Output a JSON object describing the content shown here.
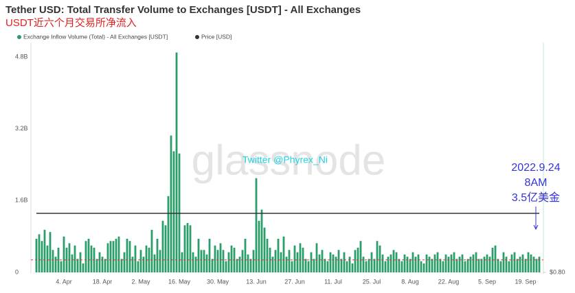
{
  "chart_data": {
    "type": "bar",
    "title": "Tether USD: Total Transfer Volume to Exchanges [USDT] - All Exchanges",
    "subtitle": "USDT近六个月交易所净流入",
    "categories": [
      null,
      null,
      null,
      null,
      null,
      null,
      null,
      null,
      null,
      null,
      "4. Apr",
      null,
      null,
      null,
      null,
      null,
      null,
      null,
      null,
      null,
      null,
      null,
      null,
      null,
      "18. Apr",
      null,
      null,
      null,
      null,
      null,
      null,
      null,
      null,
      null,
      null,
      null,
      null,
      null,
      "2. May",
      null,
      null,
      null,
      null,
      null,
      null,
      null,
      null,
      null,
      null,
      null,
      null,
      null,
      "16. May",
      null,
      null,
      null,
      null,
      null,
      null,
      null,
      null,
      null,
      null,
      null,
      null,
      null,
      "30. May",
      null,
      null,
      null,
      null,
      null,
      null,
      null,
      null,
      null,
      null,
      null,
      null,
      null,
      "13. Jun",
      null,
      null,
      null,
      null,
      null,
      null,
      null,
      null,
      null,
      null,
      null,
      null,
      null,
      "27. Jun",
      null,
      null,
      null,
      null,
      null,
      null,
      null,
      null,
      null,
      null,
      null,
      null,
      null,
      "11. Jul",
      null,
      null,
      null,
      null,
      null,
      null,
      null,
      null,
      null,
      null,
      null,
      null,
      null,
      "25. Jul",
      null,
      null,
      null,
      null,
      null,
      null,
      null,
      null,
      null,
      null,
      null,
      null,
      null,
      "8. Aug",
      null,
      null,
      null,
      null,
      null,
      null,
      null,
      null,
      null,
      null,
      null,
      null,
      null,
      "22. Aug",
      null,
      null,
      null,
      null,
      null,
      null,
      null,
      null,
      null,
      null,
      null,
      null,
      null,
      "5. Sep",
      null,
      null,
      null,
      null,
      null,
      null,
      null,
      null,
      null,
      null,
      null,
      null,
      null,
      "19. Sep",
      null,
      null,
      null,
      null,
      null
    ],
    "series": [
      {
        "name": "Exchange Inflow Volume (Total) - All Exchanges [USDT]",
        "color": "#2a9d6a",
        "values": [
          0.75,
          0.85,
          0.7,
          0.95,
          0.6,
          0.9,
          0.5,
          0.35,
          0.55,
          0.25,
          0.8,
          0.55,
          0.65,
          0.4,
          0.6,
          0.3,
          0.45,
          0.2,
          0.7,
          0.75,
          0.6,
          0.55,
          0.3,
          0.45,
          0.35,
          0.3,
          0.65,
          0.7,
          0.7,
          0.75,
          0.8,
          0.3,
          0.45,
          0.75,
          0.7,
          0.35,
          0.6,
          0.25,
          0.5,
          0.35,
          0.6,
          0.55,
          0.95,
          0.4,
          0.75,
          0.5,
          1.15,
          1.05,
          1.7,
          3.05,
          2.7,
          4.9,
          2.65,
          0.45,
          1.05,
          1.1,
          1.05,
          0.45,
          0.35,
          0.75,
          0.5,
          0.5,
          0.4,
          0.75,
          0.3,
          0.6,
          0.5,
          0.65,
          0.5,
          0.25,
          0.45,
          0.6,
          0.55,
          0.3,
          0.35,
          0.5,
          0.75,
          0.4,
          0.3,
          0.5,
          2.1,
          1.15,
          1.4,
          1.0,
          0.75,
          0.55,
          0.35,
          0.5,
          0.75,
          0.45,
          0.8,
          0.35,
          0.5,
          0.25,
          0.6,
          0.45,
          0.65,
          0.55,
          0.3,
          0.25,
          0.45,
          0.3,
          0.65,
          0.4,
          0.5,
          0.3,
          0.25,
          0.45,
          0.4,
          0.35,
          0.5,
          0.3,
          0.45,
          0.25,
          0.35,
          0.2,
          0.5,
          0.55,
          0.7,
          0.35,
          0.25,
          0.3,
          0.45,
          0.3,
          0.7,
          0.6,
          0.4,
          0.25,
          0.35,
          0.4,
          0.5,
          0.45,
          0.3,
          0.25,
          0.4,
          0.35,
          0.3,
          0.45,
          0.35,
          0.4,
          0.25,
          0.2,
          0.4,
          0.35,
          0.3,
          0.4,
          0.45,
          0.3,
          0.25,
          0.4,
          0.35,
          0.4,
          0.45,
          0.3,
          0.35,
          0.4,
          0.25,
          0.3,
          0.35,
          0.4,
          0.45,
          0.3,
          0.3,
          0.35,
          0.4,
          0.35,
          0.55,
          0.6,
          0.3,
          0.25,
          0.45,
          0.35,
          0.25,
          0.4,
          0.45,
          0.3,
          0.35,
          0.4,
          0.3,
          0.45,
          0.4,
          0.35,
          0.3,
          0.35
        ]
      },
      {
        "name": "Price [USD]",
        "color": "#333333",
        "type": "line",
        "axis": "y2",
        "values": [
          1,
          1,
          1,
          1,
          1,
          1,
          1,
          1,
          1,
          1,
          1,
          1,
          1,
          1,
          1,
          1,
          1,
          1,
          1,
          1,
          1,
          1,
          1,
          1,
          1,
          1,
          1,
          1,
          1,
          1,
          1,
          1,
          1,
          1,
          1,
          1,
          1,
          1,
          1,
          1,
          1,
          1,
          1,
          1,
          1,
          1,
          1,
          1,
          1,
          1,
          1,
          1,
          1,
          1,
          1,
          1,
          1,
          1,
          1,
          1,
          1,
          1,
          1,
          1,
          1,
          1,
          1,
          1,
          1,
          1,
          1,
          1,
          1,
          1,
          1,
          1,
          1,
          1,
          1,
          1,
          1,
          1,
          1,
          1,
          1,
          1,
          1,
          1,
          1,
          1,
          1,
          1,
          1,
          1,
          1,
          1,
          1,
          1,
          1,
          1,
          1,
          1,
          1,
          1,
          1,
          1,
          1,
          1,
          1,
          1,
          1,
          1,
          1,
          1,
          1,
          1,
          1,
          1,
          1,
          1,
          1,
          1,
          1,
          1,
          1,
          1,
          1,
          1,
          1,
          1,
          1,
          1,
          1,
          1,
          1,
          1,
          1,
          1,
          1,
          1,
          1,
          1,
          1,
          1,
          1,
          1,
          1,
          1,
          1,
          1,
          1,
          1,
          1,
          1,
          1,
          1,
          1,
          1,
          1,
          1,
          1,
          1,
          1,
          1,
          1,
          1,
          1,
          1,
          1,
          1,
          1,
          1,
          1,
          1,
          1,
          1,
          1,
          1,
          1,
          1,
          1,
          1,
          1,
          1
        ]
      }
    ],
    "ylim": [
      0,
      5.0
    ],
    "yticks": [
      0,
      {
        "value": 1.6,
        "label": "1.6B"
      },
      {
        "value": 3.2,
        "label": "3.2B"
      },
      {
        "value": 4.8,
        "label": "4.8B"
      }
    ],
    "y2lim": [
      0.8,
      1.56
    ],
    "y2ticks": [
      {
        "value": 0.8,
        "label": "$0.80"
      }
    ],
    "reference_line": {
      "value": 0.28,
      "color": "#e03030"
    },
    "annotations": [
      "2022.9.24",
      "8AM",
      "3.5亿美金"
    ],
    "annotation_color": "#3333dd",
    "watermark": "glassnode",
    "credit": "Twitter @Phyrex_Ni"
  }
}
